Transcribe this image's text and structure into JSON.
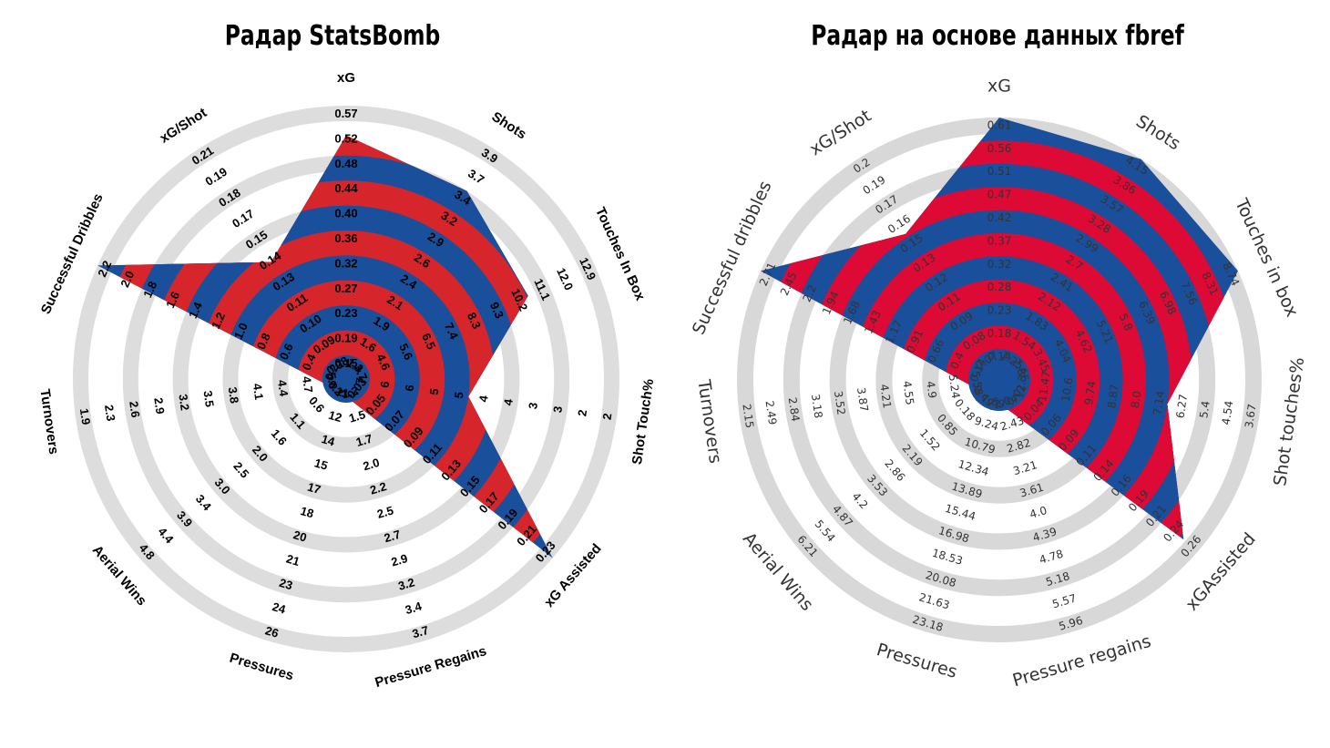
{
  "chart_data": [
    {
      "type": "radar",
      "title": "Радар StatsBomb",
      "style": "statsbomb",
      "colors": {
        "ring": "#dddddd",
        "fill_a": "#d7262b",
        "fill_b": "#1a4f9c"
      },
      "grid": true,
      "axes": [
        {
          "label": "xG",
          "ticks": [
            "0.57",
            "0.52",
            "0.48",
            "0.44",
            "0.40",
            "0.36",
            "0.32",
            "0.27",
            "0.23",
            "0.19",
            "0.15"
          ],
          "value": 0.52,
          "range": [
            0.15,
            0.57
          ]
        },
        {
          "label": "Shots",
          "ticks": [
            "3.9",
            "3.7",
            "3.4",
            "3.2",
            "2.9",
            "2.6",
            "2.4",
            "2.1",
            "1.9",
            "1.6",
            "1.4"
          ],
          "value": 3.4,
          "range": [
            1.4,
            3.9
          ]
        },
        {
          "label": "Touches In Box",
          "ticks": [
            "12.9",
            "12.0",
            "11.1",
            "10.2",
            "9.3",
            "8.3",
            "7.4",
            "6.5",
            "5.6",
            "4.6",
            "3.7"
          ],
          "value": 10.2,
          "range": [
            3.7,
            12.9
          ]
        },
        {
          "label": "Shot Touch%",
          "ticks": [
            "2",
            "2",
            "3",
            "3",
            "4",
            "4",
            "5",
            "5",
            "6",
            "6",
            "7"
          ],
          "value": 4,
          "range": [
            2,
            7
          ]
        },
        {
          "label": "xG Assisted",
          "ticks": [
            "0.23",
            "0.21",
            "0.19",
            "0.17",
            "0.15",
            "0.13",
            "0.11",
            "0.09",
            "0.07",
            "0.05",
            "0.03"
          ],
          "value": 0.23,
          "range": [
            0.03,
            0.23
          ]
        },
        {
          "label": "Pressure Regains",
          "ticks": [
            "3.7",
            "3.4",
            "3.2",
            "2.9",
            "2.7",
            "2.5",
            "2.2",
            "2.0",
            "1.7",
            "1.5",
            "1.2"
          ],
          "value": 1.2,
          "range": [
            1.2,
            3.7
          ]
        },
        {
          "label": "Pressures",
          "ticks": [
            "26",
            "24",
            "23",
            "21",
            "20",
            "18",
            "17",
            "15",
            "14",
            "12",
            "11"
          ],
          "value": 11,
          "range": [
            11,
            26
          ]
        },
        {
          "label": "Aerial Wins",
          "ticks": [
            "4.8",
            "4.4",
            "3.9",
            "3.4",
            "3.0",
            "2.5",
            "2.0",
            "1.6",
            "1.1",
            "0.6",
            "0.2"
          ],
          "value": 0.2,
          "range": [
            0.2,
            4.8
          ]
        },
        {
          "label": "Turnovers",
          "ticks": [
            "1.9",
            "2.3",
            "2.6",
            "2.9",
            "3.2",
            "3.5",
            "3.8",
            "4.1",
            "4.4",
            "4.7",
            "5.0"
          ],
          "value": 5.0,
          "range": [
            5.0,
            1.9
          ]
        },
        {
          "label": "Successful Dribbles",
          "ticks": [
            "2.2",
            "2.0",
            "1.8",
            "1.6",
            "1.4",
            "1.2",
            "1.0",
            "0.8",
            "0.6",
            "0.4",
            "0.2"
          ],
          "value": 2.2,
          "range": [
            0.2,
            2.2
          ]
        },
        {
          "label": "xG/Shot",
          "ticks": [
            "0.21",
            "0.19",
            "0.18",
            "0.17",
            "0.15",
            "0.14",
            "0.13",
            "0.11",
            "0.10",
            "0.09",
            "0.08"
          ],
          "value": 0.14,
          "range": [
            0.08,
            0.21
          ]
        }
      ]
    },
    {
      "type": "radar",
      "title": "Радар на основе данных fbref",
      "style": "fbref",
      "colors": {
        "ring": "#d8d8d8",
        "fill_a": "#dc0a34",
        "fill_b": "#1a4f9c"
      },
      "grid": true,
      "axes": [
        {
          "label": "xG",
          "ticks": [
            "0.61",
            "0.56",
            "0.51",
            "0.47",
            "0.42",
            "0.37",
            "0.32",
            "0.28",
            "0.23",
            "0.18",
            "0.14"
          ],
          "value": 0.61,
          "range": [
            0.14,
            0.61
          ]
        },
        {
          "label": "Shots",
          "ticks": [
            "4.15",
            "3.86",
            "3.57",
            "3.28",
            "2.99",
            "2.7",
            "2.41",
            "2.12",
            "1.83",
            "1.54",
            "1.25"
          ],
          "value": 4.15,
          "range": [
            1.25,
            4.15
          ]
        },
        {
          "label": "Touches in box",
          "ticks": [
            "8.74",
            "8.31",
            "7.56",
            "6.98",
            "6.39",
            "5.8",
            "5.21",
            "4.62",
            "4.04",
            "3.45",
            "2.86"
          ],
          "value": 8.74,
          "range": [
            2.86,
            8.74
          ]
        },
        {
          "label": "Shot touches%",
          "ticks": [
            "3.67",
            "4.54",
            "5.4",
            "6.27",
            "7.14",
            "8.0",
            "8.87",
            "9.74",
            "10.6",
            "11.47",
            "12.34"
          ],
          "value": 7.14,
          "range": [
            12.34,
            3.67
          ]
        },
        {
          "label": "xGAssisted",
          "ticks": [
            "0.26",
            "0.24",
            "0.21",
            "0.19",
            "0.16",
            "0.14",
            "0.11",
            "0.09",
            "0.06",
            "0.04",
            "0.01"
          ],
          "value": 0.24,
          "range": [
            0.01,
            0.26
          ]
        },
        {
          "label": "Pressure regains",
          "ticks": [
            "5.96",
            "5.57",
            "5.18",
            "4.78",
            "4.39",
            "4.0",
            "3.61",
            "3.21",
            "2.82",
            "2.43",
            "2.04"
          ],
          "value": 2.04,
          "range": [
            2.04,
            5.96
          ]
        },
        {
          "label": "Pressures",
          "ticks": [
            "23.18",
            "21.63",
            "20.08",
            "18.53",
            "16.98",
            "15.44",
            "13.89",
            "12.34",
            "10.79",
            "9.24",
            "7.69"
          ],
          "value": 7.69,
          "range": [
            7.69,
            23.18
          ]
        },
        {
          "label": "Aerial Wins",
          "ticks": [
            "6.21",
            "5.54",
            "4.87",
            "4.2",
            "3.53",
            "2.86",
            "2.19",
            "1.52",
            "0.85",
            "0.18",
            "-0.49"
          ],
          "value": -0.49,
          "range": [
            -0.49,
            6.21
          ]
        },
        {
          "label": "Turnovers",
          "ticks": [
            "2.15",
            "2.49",
            "2.84",
            "3.18",
            "3.52",
            "3.87",
            "4.21",
            "4.55",
            "4.9",
            "5.24",
            "5.58"
          ],
          "value": 5.58,
          "range": [
            5.58,
            2.15
          ]
        },
        {
          "label": "Successful dribbles",
          "ticks": [
            "2.71",
            "2.45",
            "2.2",
            "1.94",
            "1.68",
            "1.43",
            "1.17",
            "0.91",
            "0.66",
            "0.4",
            "0.14"
          ],
          "value": 2.71,
          "range": [
            0.14,
            2.71
          ]
        },
        {
          "label": "xG/Shot",
          "ticks": [
            "0.2",
            "0.19",
            "0.17",
            "0.16",
            "0.15",
            "0.13",
            "0.12",
            "0.11",
            "0.09",
            "0.08",
            "0.07"
          ],
          "value": 0.15,
          "range": [
            0.07,
            0.2
          ]
        }
      ]
    }
  ]
}
